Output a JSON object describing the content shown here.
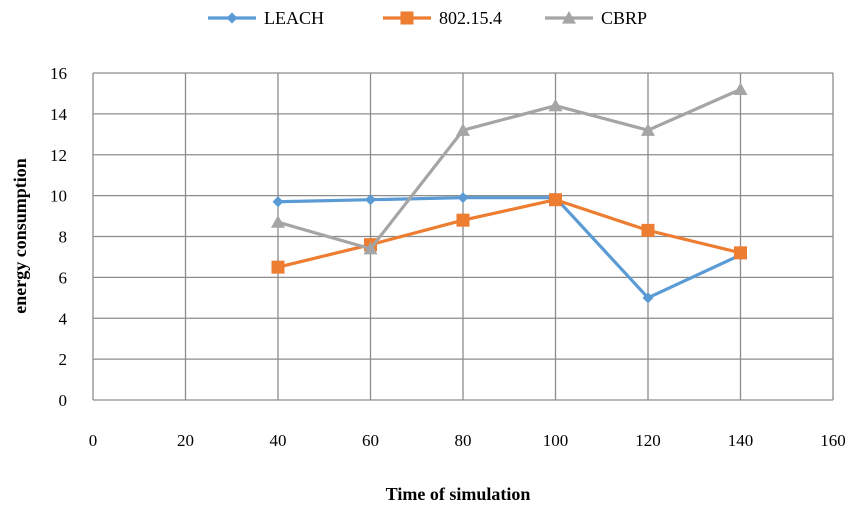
{
  "chart_data": {
    "type": "line",
    "title": "",
    "xlabel": "Time of simulation",
    "ylabel": "energy consumption",
    "xlim": [
      0,
      160
    ],
    "ylim": [
      0,
      16
    ],
    "x_ticks": [
      0,
      20,
      40,
      60,
      80,
      100,
      120,
      140,
      160
    ],
    "y_ticks": [
      0,
      2,
      4,
      6,
      8,
      10,
      12,
      14,
      16
    ],
    "grid": true,
    "legend_position": "top",
    "series": [
      {
        "name": "LEACH",
        "color": "#5b9bd5",
        "marker": "diamond",
        "x": [
          40,
          60,
          80,
          100,
          120,
          140
        ],
        "values": [
          9.7,
          9.8,
          9.9,
          9.9,
          5.0,
          7.1
        ]
      },
      {
        "name": "802.15.4",
        "color": "#ed7d31",
        "marker": "square",
        "x": [
          40,
          60,
          80,
          100,
          120,
          140
        ],
        "values": [
          6.5,
          7.6,
          8.8,
          9.8,
          8.3,
          7.2
        ]
      },
      {
        "name": "CBRP",
        "color": "#a5a5a5",
        "marker": "triangle",
        "x": [
          40,
          60,
          80,
          100,
          120,
          140
        ],
        "values": [
          8.7,
          7.4,
          13.2,
          14.4,
          13.2,
          15.2
        ]
      }
    ]
  }
}
